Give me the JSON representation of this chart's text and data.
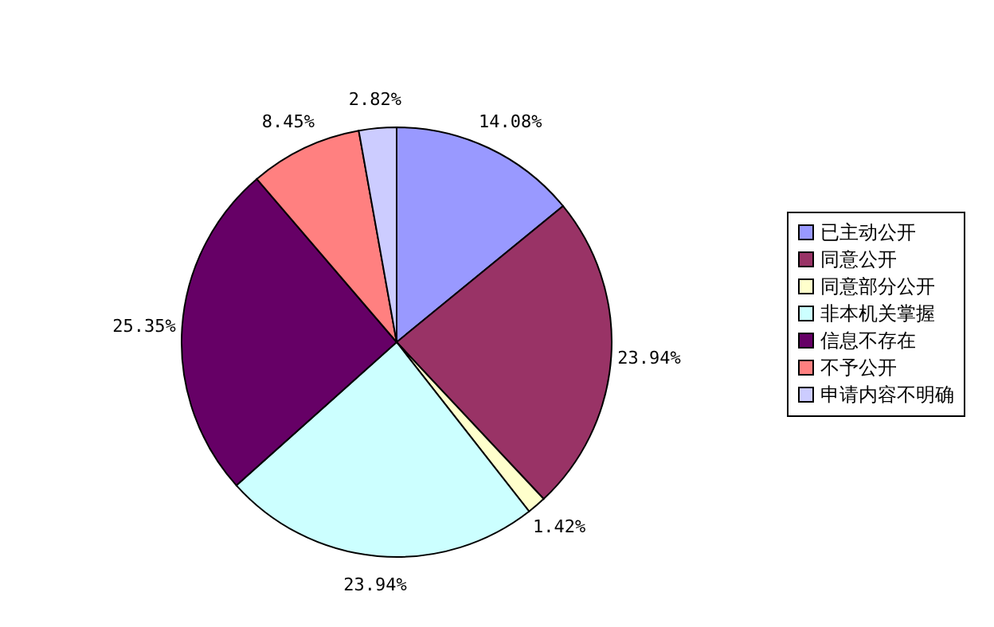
{
  "chart_data": {
    "type": "pie",
    "categories": [
      "已主动公开",
      "同意公开",
      "同意部分公开",
      "非本机关掌握",
      "信息不存在",
      "不予公开",
      "申请内容不明确"
    ],
    "values": [
      14.08,
      23.94,
      1.42,
      23.94,
      25.35,
      8.45,
      2.82
    ],
    "value_labels": [
      "14.08%",
      "23.94%",
      "1.42%",
      "23.94%",
      "25.35%",
      "8.45%",
      "2.82%"
    ],
    "colors": [
      "#9999ff",
      "#993366",
      "#ffffcc",
      "#ccffff",
      "#660066",
      "#ff8080",
      "#ccccff"
    ],
    "legend": "right"
  }
}
